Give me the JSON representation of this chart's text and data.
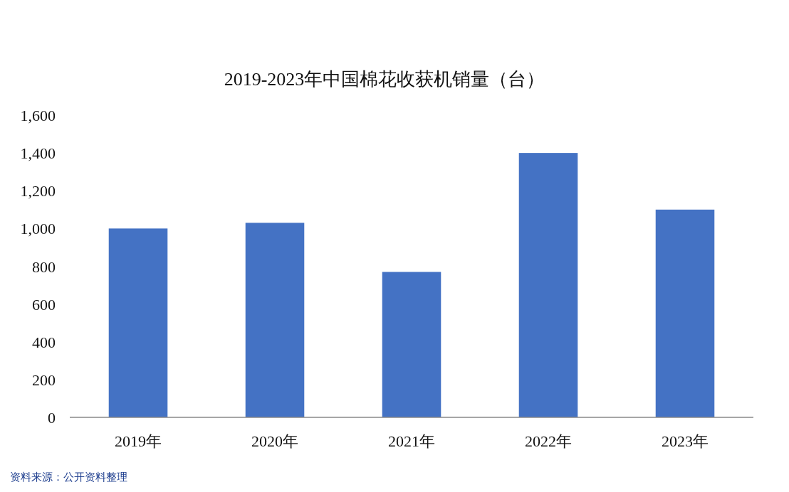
{
  "chart_data": {
    "type": "bar",
    "title": "2019-2023年中国棉花收获机销量（台）",
    "categories": [
      "2019年",
      "2020年",
      "2021年",
      "2022年",
      "2023年"
    ],
    "values": [
      1000,
      1030,
      770,
      1400,
      1100
    ],
    "color": "#4472c4",
    "ylim": [
      0,
      1600
    ],
    "yticks": [
      {
        "value": 0,
        "label": "0"
      },
      {
        "value": 200,
        "label": "200"
      },
      {
        "value": 400,
        "label": "400"
      },
      {
        "value": 600,
        "label": "600"
      },
      {
        "value": 800,
        "label": "800"
      },
      {
        "value": 1000,
        "label": "1,000"
      },
      {
        "value": 1200,
        "label": "1,200"
      },
      {
        "value": 1400,
        "label": "1,400"
      },
      {
        "value": 1600,
        "label": "1,600"
      }
    ],
    "grid": false,
    "annotations": [
      "资料来源：公开资料整理"
    ]
  }
}
